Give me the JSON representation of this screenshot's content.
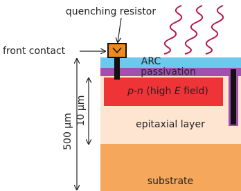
{
  "labels": {
    "quenching_resistor": "quenching resistor",
    "front_contact": "front contact",
    "arc": "ARC",
    "passivation": "passivation",
    "junction": [
      "p-n",
      " (high ",
      "E",
      " field)"
    ],
    "epitaxial": "epitaxial layer",
    "substrate": "substrate",
    "thickness_total": "500 µm",
    "thickness_epi": "10 µm"
  }
}
